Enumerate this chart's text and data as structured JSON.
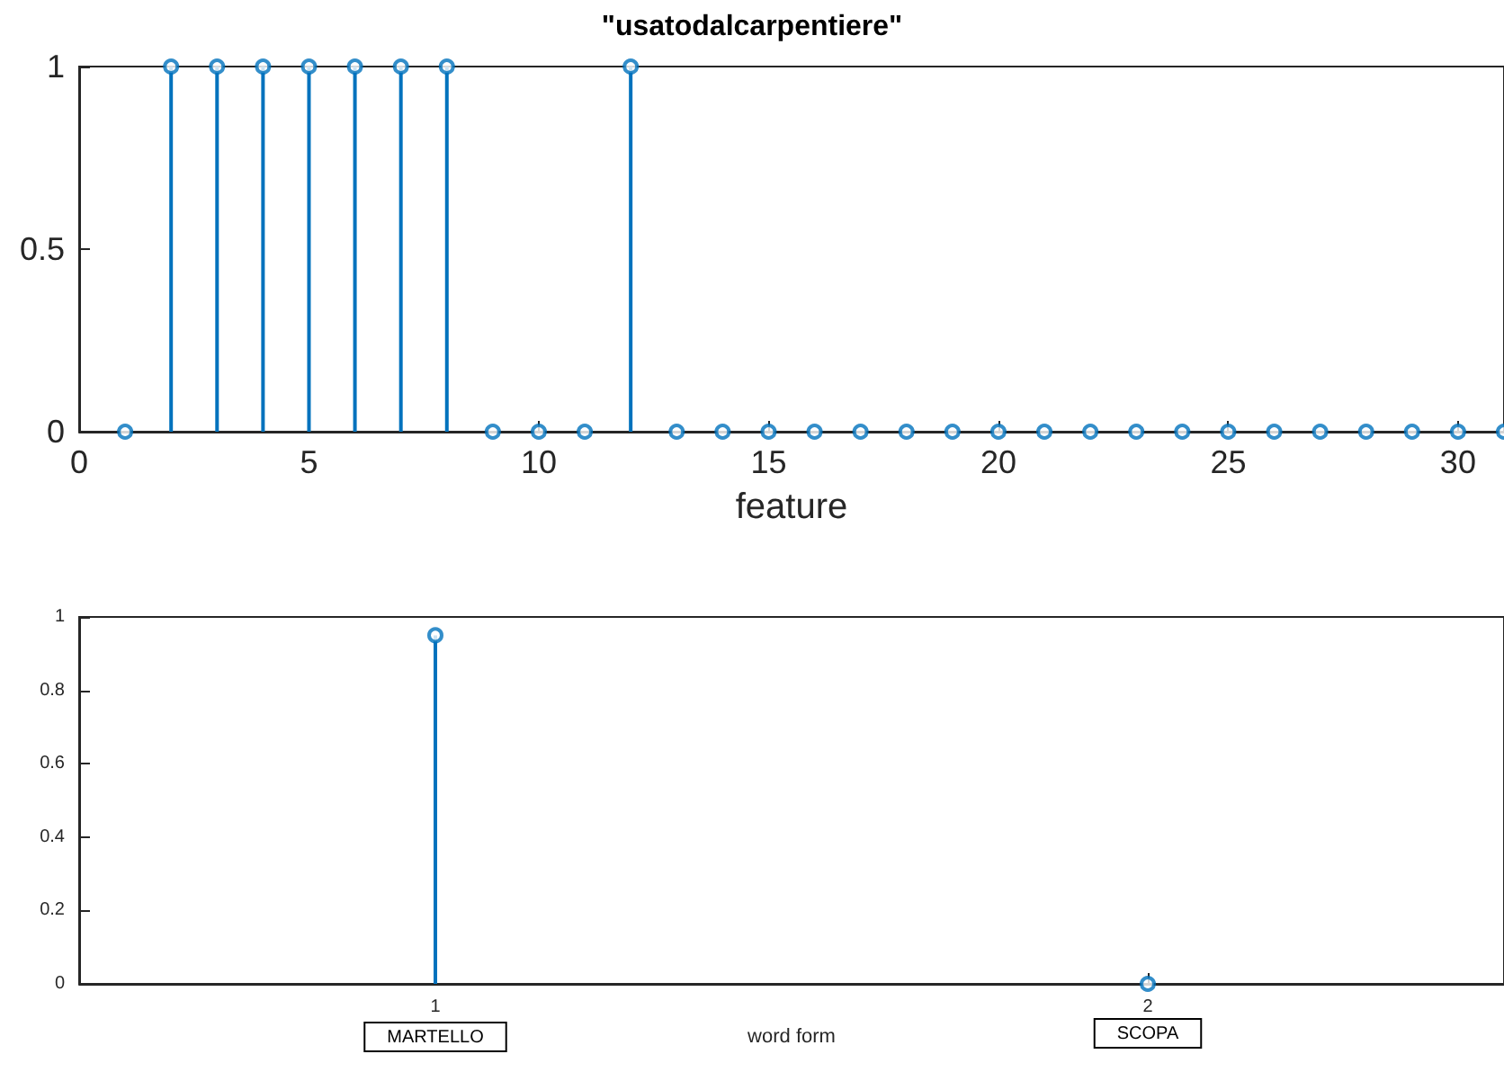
{
  "chart_data": [
    {
      "type": "lollipop",
      "title": "\"usatodalcarpentiere\"",
      "xlabel": "feature",
      "x": [
        1,
        2,
        3,
        4,
        5,
        6,
        7,
        8,
        9,
        10,
        11,
        12,
        13,
        14,
        15,
        16,
        17,
        18,
        19,
        20,
        21,
        22,
        23,
        24,
        25,
        26,
        27,
        28,
        29,
        30,
        31
      ],
      "values": [
        0,
        1,
        1,
        1,
        1,
        1,
        1,
        1,
        0,
        0,
        0,
        1,
        0,
        0,
        0,
        0,
        0,
        0,
        0,
        0,
        0,
        0,
        0,
        0,
        0,
        0,
        0,
        0,
        0,
        0,
        0
      ],
      "color": "#0072bd",
      "marker": "circle",
      "xlim": [
        0,
        31
      ],
      "xticks": [
        0,
        5,
        10,
        15,
        20,
        25,
        30
      ],
      "ylim": [
        0,
        1
      ],
      "yticks": [
        0,
        0.5,
        1
      ],
      "grid": false
    },
    {
      "type": "lollipop",
      "xlabel": "word form",
      "x": [
        1,
        2
      ],
      "values": [
        0.95,
        0
      ],
      "color": "#0072bd",
      "marker": "circle",
      "xlim": [
        0.5,
        2.5
      ],
      "xticks": [
        1,
        2
      ],
      "ylim": [
        0,
        1
      ],
      "yticks": [
        0,
        0.2,
        0.4,
        0.6,
        0.8,
        1
      ],
      "grid": false,
      "annotations": [
        "MARTELLO",
        "SCOPA"
      ]
    }
  ]
}
